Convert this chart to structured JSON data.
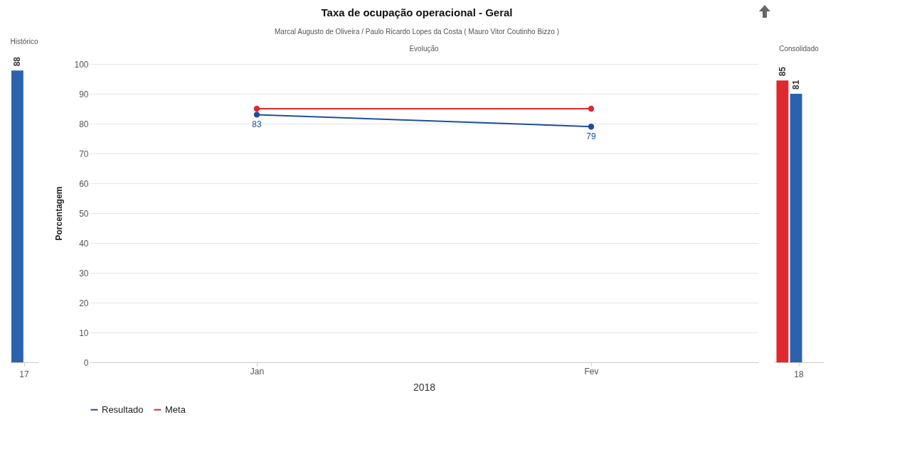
{
  "chart_data": [
    {
      "type": "bar",
      "title": "Histórico",
      "categories": [
        "17"
      ],
      "values": [
        88
      ],
      "color": "#2a62ae",
      "data_labels": true
    },
    {
      "type": "line",
      "title": "Taxa de ocupação operacional - Geral",
      "subtitle": "Marcal Augusto de Oliveira / Paulo Ricardo Lopes da Costa ( Mauro Vitor Coutinho Bizzo )",
      "annotations": [
        "Evolução"
      ],
      "categories": [
        "Jan",
        "Fev"
      ],
      "xlabel": "2018",
      "ylabel": "Porcentagem",
      "ylim": [
        0,
        100
      ],
      "yticks": [
        0,
        10,
        20,
        30,
        40,
        50,
        60,
        70,
        80,
        90,
        100
      ],
      "grid": "y",
      "legend": "bottom",
      "marker": "circle",
      "series": [
        {
          "name": "Resultado",
          "color": "#1f4e9c",
          "values": [
            83,
            79
          ],
          "value_labels": [
            "83",
            "79"
          ]
        },
        {
          "name": "Meta",
          "color": "#e0282e",
          "values": [
            85,
            85
          ]
        }
      ]
    },
    {
      "type": "bar",
      "title": "Consolidado",
      "categories": [
        "18"
      ],
      "data_labels": true,
      "series": [
        {
          "color": "#e0282e",
          "values": [
            85
          ]
        },
        {
          "color": "#2a62ae",
          "values": [
            81
          ]
        }
      ]
    }
  ]
}
